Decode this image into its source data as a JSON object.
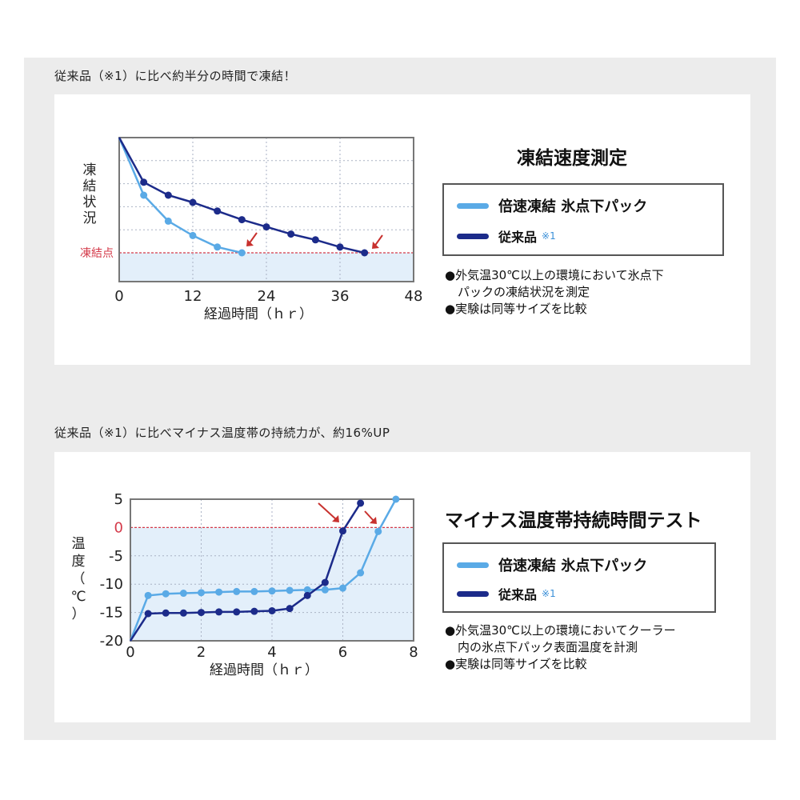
{
  "colors": {
    "fast": "#5aaae6",
    "conventional": "#1c2b8a",
    "freeze_line": "#d43a4a",
    "plot_fill": "#e3effa",
    "arrow": "#c8312e"
  },
  "section1": {
    "heading": "従来品（※1）に比べ約半分の時間で凍結！",
    "title": "凍結速度測定",
    "legend": {
      "fast_label": "倍速凍結 氷点下パック",
      "conv_label": "従来品",
      "conv_note": "※1"
    },
    "notes": [
      "●外気温30℃以上の環境において氷点下",
      "パックの凍結状況を測定",
      "●実験は同等サイズを比較"
    ]
  },
  "section2": {
    "heading": "従来品（※1）に比べマイナス温度帯の持続力が、約16%UP",
    "title": "マイナス温度帯持続時間テスト",
    "legend": {
      "fast_label": "倍速凍結 氷点下パック",
      "conv_label": "従来品",
      "conv_note": "※1"
    },
    "notes": [
      "●外気温30℃以上の環境においてクーラー",
      "内の氷点下パック表面温度を計測",
      "●実験は同等サイズを比較"
    ]
  },
  "chart_data": [
    {
      "type": "line",
      "xlabel": "経過時間（ｈｒ）",
      "ylabel": "凍結状況",
      "xlim": [
        0,
        48
      ],
      "ylim": [
        0,
        1
      ],
      "x_ticks": [
        "0",
        "12",
        "24",
        "36",
        "48"
      ],
      "freeze_point_label": "凍結点",
      "freeze_point": 0.2,
      "grid": true,
      "series": [
        {
          "name": "倍速凍結 氷点下パック",
          "x": [
            0,
            4,
            8,
            12,
            16,
            20
          ],
          "y": [
            1.0,
            0.6,
            0.42,
            0.32,
            0.24,
            0.2
          ]
        },
        {
          "name": "従来品",
          "x": [
            0,
            4,
            8,
            12,
            16,
            20,
            24,
            28,
            32,
            36,
            40
          ],
          "y": [
            1.0,
            0.69,
            0.6,
            0.55,
            0.49,
            0.43,
            0.38,
            0.33,
            0.29,
            0.24,
            0.2
          ]
        }
      ]
    },
    {
      "type": "line",
      "xlabel": "経過時間（ｈｒ）",
      "ylabel": "温度（℃）",
      "xlim": [
        0,
        8
      ],
      "ylim": [
        -20,
        5
      ],
      "x_ticks": [
        "0",
        "2",
        "4",
        "6",
        "8"
      ],
      "y_ticks": [
        "5",
        "0",
        "-5",
        "-10",
        "-15",
        "-20"
      ],
      "zero_label": "0",
      "grid": true,
      "series": [
        {
          "name": "倍速凍結 氷点下パック",
          "x": [
            0,
            0.5,
            1,
            1.5,
            2,
            2.5,
            3,
            3.5,
            4,
            4.5,
            5,
            5.5,
            6,
            6.5,
            7,
            7.5
          ],
          "y": [
            -20,
            -12,
            -11.7,
            -11.6,
            -11.5,
            -11.4,
            -11.3,
            -11.3,
            -11.2,
            -11.1,
            -11.0,
            -11.0,
            -10.7,
            -8,
            -0.7,
            5
          ]
        },
        {
          "name": "従来品",
          "x": [
            0,
            0.5,
            1,
            1.5,
            2,
            2.5,
            3,
            3.5,
            4,
            4.5,
            5,
            5.5,
            6,
            6.5
          ],
          "y": [
            -20,
            -15.2,
            -15.1,
            -15.1,
            -15.0,
            -14.9,
            -14.9,
            -14.8,
            -14.7,
            -14.3,
            -12,
            -9.7,
            -0.6,
            4.3
          ]
        }
      ]
    }
  ]
}
